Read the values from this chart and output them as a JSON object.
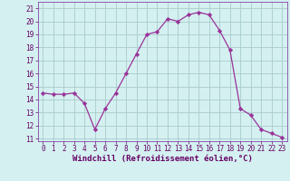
{
  "x": [
    0,
    1,
    2,
    3,
    4,
    5,
    6,
    7,
    8,
    9,
    10,
    11,
    12,
    13,
    14,
    15,
    16,
    17,
    18,
    19,
    20,
    21,
    22,
    23
  ],
  "y": [
    14.5,
    14.4,
    14.4,
    14.5,
    13.7,
    11.7,
    13.3,
    14.5,
    16.0,
    17.5,
    19.0,
    19.2,
    20.2,
    20.0,
    20.5,
    20.7,
    20.5,
    19.3,
    17.8,
    13.3,
    12.8,
    11.7,
    11.4,
    11.1
  ],
  "line_color": "#993399",
  "marker": "D",
  "marker_size": 2.2,
  "bg_color": "#d4f0f0",
  "grid_color": "#aacccc",
  "xlabel": "Windchill (Refroidissement éolien,°C)",
  "ylabel": "",
  "ylim": [
    10.8,
    21.5
  ],
  "xlim": [
    -0.5,
    23.5
  ],
  "yticks": [
    11,
    12,
    13,
    14,
    15,
    16,
    17,
    18,
    19,
    20,
    21
  ],
  "xticks": [
    0,
    1,
    2,
    3,
    4,
    5,
    6,
    7,
    8,
    9,
    10,
    11,
    12,
    13,
    14,
    15,
    16,
    17,
    18,
    19,
    20,
    21,
    22,
    23
  ],
  "tick_label_fontsize": 5.5,
  "xlabel_fontsize": 6.5,
  "axis_color": "#660066",
  "spine_color": "#8844aa"
}
